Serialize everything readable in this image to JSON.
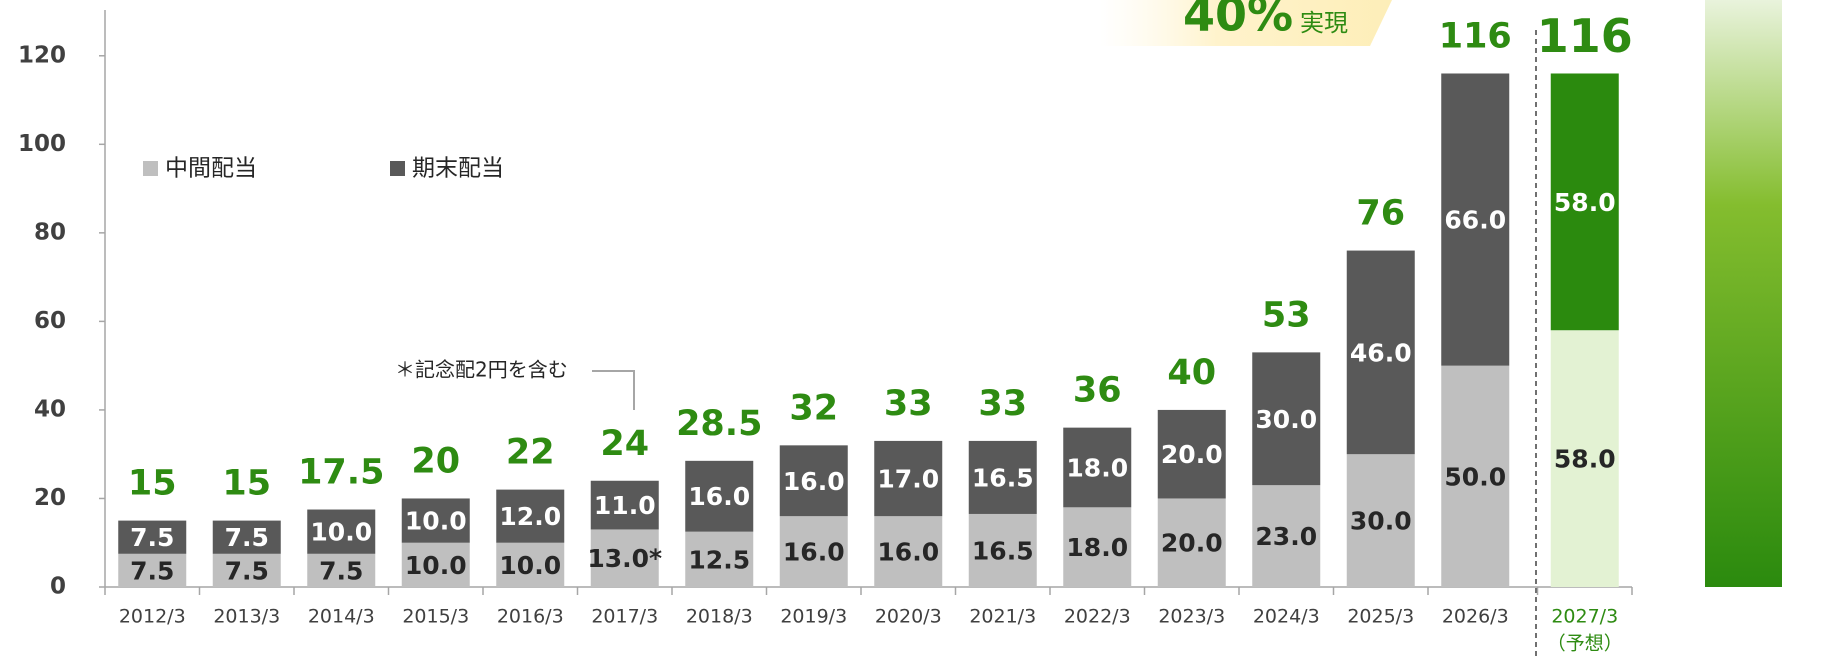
{
  "chart_data": {
    "type": "stacked_bar",
    "banner": {
      "main": "40%",
      "suffix": "実現"
    },
    "categories": [
      "2012/3",
      "2013/3",
      "2014/3",
      "2015/3",
      "2016/3",
      "2017/3",
      "2018/3",
      "2019/3",
      "2020/3",
      "2021/3",
      "2022/3",
      "2023/3",
      "2024/3",
      "2025/3",
      "2026/3",
      "2027/3"
    ],
    "forecast_label": "（予想）",
    "series": [
      {
        "name": "中間配当",
        "color": "#bfbfbf",
        "forecast_color": "#e3f2d3",
        "label_color": "#262626",
        "values": [
          7.5,
          7.5,
          7.5,
          10,
          10,
          13,
          12.5,
          16,
          16,
          16.5,
          18,
          20,
          23,
          30,
          50,
          58
        ],
        "value_labels": [
          "7.5",
          "7.5",
          "7.5",
          "10.0",
          "10.0",
          "13.0*",
          "12.5",
          "16.0",
          "16.0",
          "16.5",
          "18.0",
          "20.0",
          "23.0",
          "30.0",
          "50.0",
          "58.0"
        ]
      },
      {
        "name": "期末配当",
        "color": "#595959",
        "forecast_color": "#2b8a0e",
        "label_color": "#ffffff",
        "values": [
          7.5,
          7.5,
          10,
          10,
          12,
          11,
          16,
          16,
          17,
          16.5,
          18,
          20,
          30,
          46,
          66,
          58
        ],
        "value_labels": [
          "7.5",
          "7.5",
          "10.0",
          "10.0",
          "12.0",
          "11.0",
          "16.0",
          "16.0",
          "17.0",
          "16.5",
          "18.0",
          "20.0",
          "30.0",
          "46.0",
          "66.0",
          "58.0"
        ]
      }
    ],
    "totals": [
      15,
      15,
      17.5,
      20,
      22,
      24,
      28.5,
      32,
      33,
      33,
      36,
      40,
      53,
      76,
      116,
      116
    ],
    "total_color": "#2e8b12",
    "annotation": "＊記念配2円を含む",
    "ylim": [
      0,
      132.6
    ],
    "yticks": [
      0,
      20,
      40,
      60,
      80,
      100,
      120
    ]
  }
}
